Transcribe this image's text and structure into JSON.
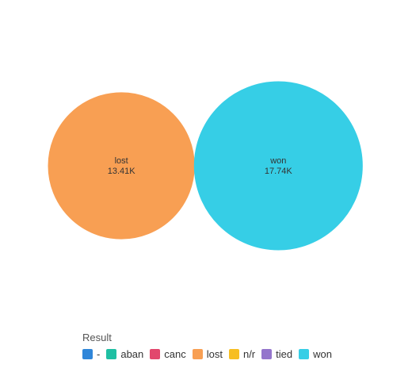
{
  "chart_data": {
    "type": "bubble",
    "legend_title": "Result",
    "legend_placement": "bottom-left",
    "series": [
      {
        "name": "-",
        "value": null,
        "color": "#2f86d9"
      },
      {
        "name": "aban",
        "value": null,
        "color": "#1fbfa3"
      },
      {
        "name": "canc",
        "value": null,
        "color": "#e2476d"
      },
      {
        "name": "lost",
        "value": 13410,
        "display": "13.41K",
        "color": "#f89f53"
      },
      {
        "name": "n/r",
        "value": null,
        "color": "#f7be21"
      },
      {
        "name": "tied",
        "value": null,
        "color": "#9475cc"
      },
      {
        "name": "won",
        "value": 17740,
        "display": "17.74K",
        "color": "#36cee6"
      }
    ]
  }
}
